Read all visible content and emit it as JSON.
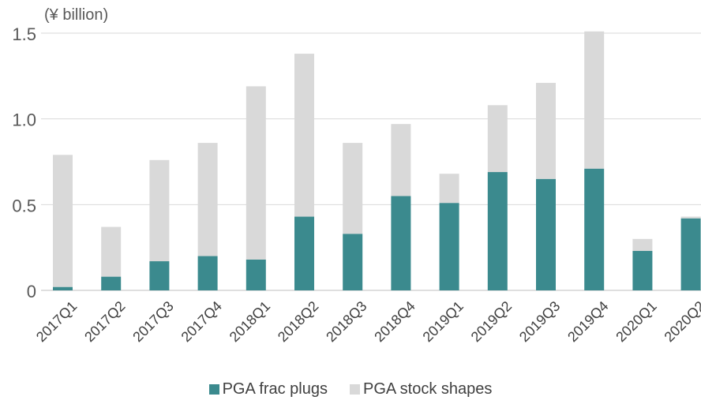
{
  "chart_data": {
    "type": "bar",
    "stacked": true,
    "unit_label": "(¥ billion)",
    "categories": [
      "2017Q1",
      "2017Q2",
      "2017Q3",
      "2017Q4",
      "2018Q1",
      "2018Q2",
      "2018Q3",
      "2018Q4",
      "2019Q1",
      "2019Q2",
      "2019Q3",
      "2019Q4",
      "2020Q1",
      "2020Q2"
    ],
    "series": [
      {
        "name": "PGA frac plugs",
        "color": "#3b8a8e",
        "values": [
          0.02,
          0.08,
          0.17,
          0.2,
          0.18,
          0.43,
          0.33,
          0.55,
          0.51,
          0.69,
          0.65,
          0.71,
          0.23,
          0.42
        ]
      },
      {
        "name": "PGA stock shapes",
        "color": "#d9d9d9",
        "values": [
          0.77,
          0.29,
          0.59,
          0.66,
          1.01,
          0.95,
          0.53,
          0.42,
          0.17,
          0.39,
          0.56,
          0.8,
          0.07,
          0.01
        ]
      }
    ],
    "yticks": [
      "0",
      "0.5",
      "1.0",
      "1.5"
    ],
    "ytick_values": [
      0,
      0.5,
      1.0,
      1.5
    ],
    "ylim": [
      0,
      1.5
    ],
    "grid": true,
    "legend_position": "bottom"
  }
}
